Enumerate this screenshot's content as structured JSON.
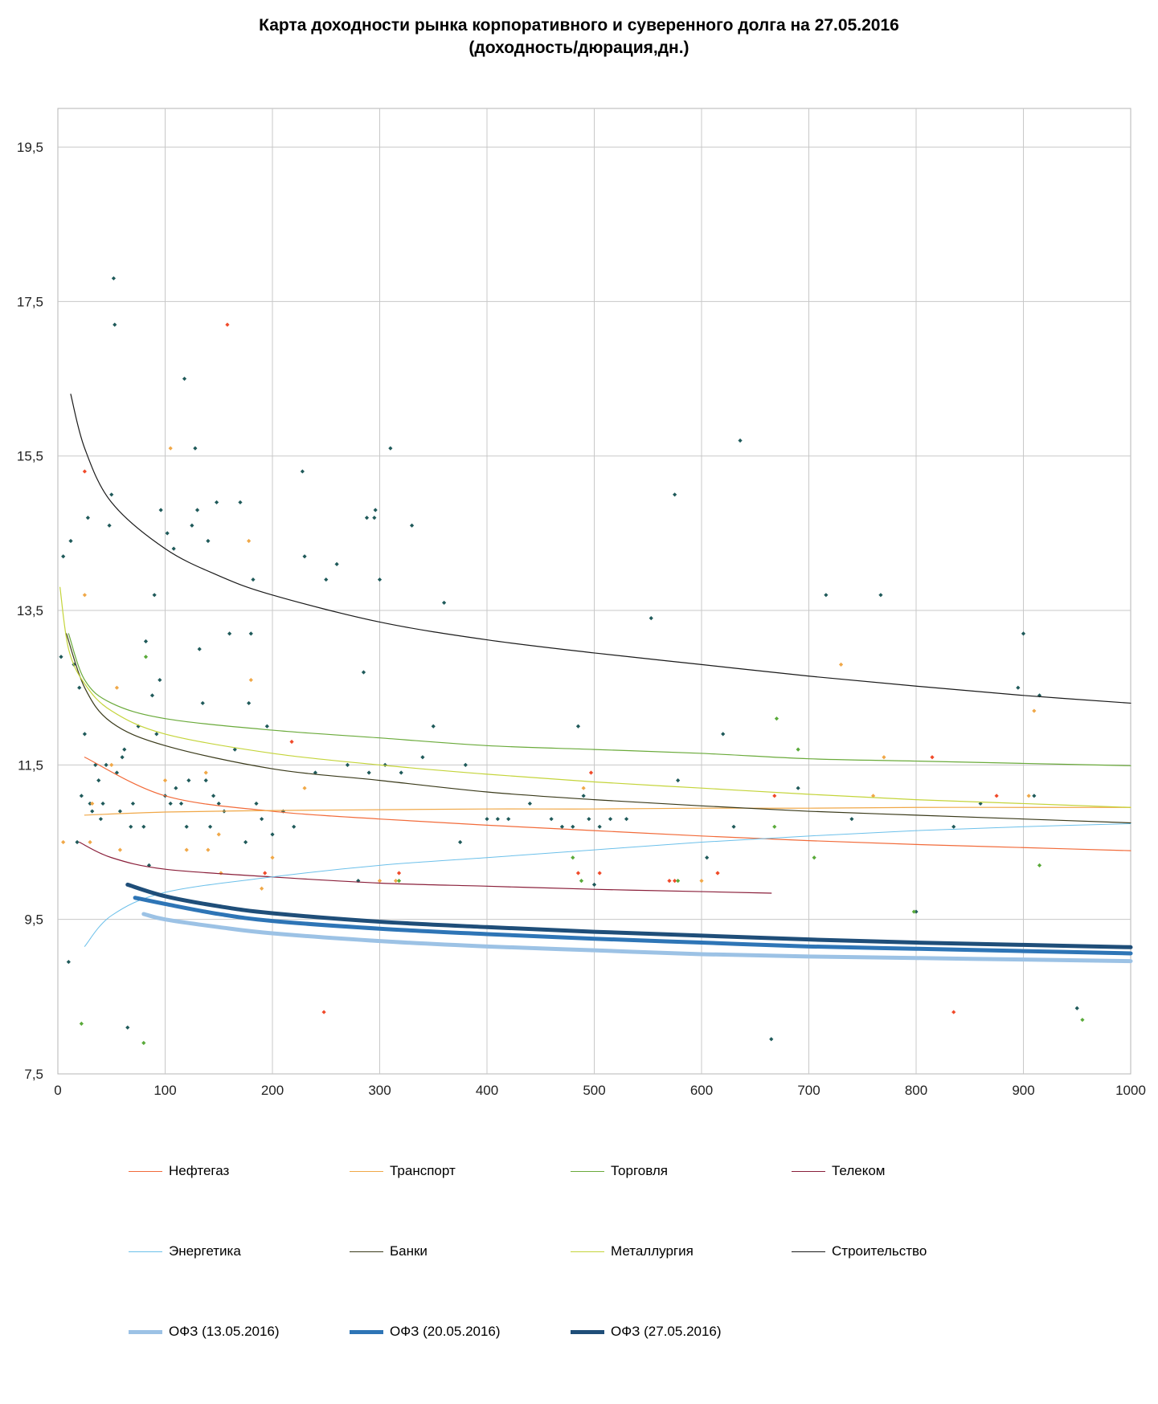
{
  "title": {
    "line1": "Карта доходности рынка корпоративного и суверенного долга на 27.05.2016",
    "line2": "(доходность/дюрация,дн.)"
  },
  "chart_data": {
    "type": "scatter",
    "title": "Карта доходности рынка корпоративного и суверенного долга на 27.05.2016 (доходность/дюрация,дн.)",
    "xlabel": "",
    "ylabel": "",
    "xlim": [
      0,
      1000
    ],
    "ylim": [
      7.5,
      20.0
    ],
    "x_ticks": [
      "0",
      "100",
      "200",
      "300",
      "400",
      "500",
      "600",
      "700",
      "800",
      "900",
      "1000"
    ],
    "y_ticks": [
      "7,5",
      "9,5",
      "11,5",
      "13,5",
      "15,5",
      "17,5",
      "19,5"
    ],
    "grid": true,
    "legend_position": "bottom",
    "series": [
      {
        "name": "Нефтегаз",
        "color": "#f26b3a",
        "width": 1.2,
        "x": [
          25,
          100,
          200,
          300,
          400,
          500,
          600,
          700,
          800,
          900,
          1000
        ],
        "y": [
          11.6,
          11.1,
          10.9,
          10.8,
          10.72,
          10.65,
          10.58,
          10.52,
          10.47,
          10.43,
          10.39
        ]
      },
      {
        "name": "Транспорт",
        "color": "#f0a848",
        "width": 1.2,
        "x": [
          25,
          100,
          200,
          300,
          400,
          500,
          600,
          700,
          800,
          900,
          1000
        ],
        "y": [
          10.85,
          10.89,
          10.91,
          10.92,
          10.93,
          10.93,
          10.94,
          10.94,
          10.95,
          10.95,
          10.95
        ]
      },
      {
        "name": "Торговля",
        "color": "#6aaa3a",
        "width": 1.2,
        "x": [
          10,
          25,
          50,
          100,
          200,
          300,
          400,
          500,
          600,
          700,
          800,
          900,
          1000
        ],
        "y": [
          13.2,
          12.6,
          12.3,
          12.1,
          11.95,
          11.85,
          11.75,
          11.7,
          11.65,
          11.58,
          11.55,
          11.52,
          11.49
        ]
      },
      {
        "name": "Телеком",
        "color": "#8a1f3a",
        "width": 1.2,
        "x": [
          20,
          50,
          100,
          200,
          300,
          400,
          500,
          600,
          665
        ],
        "y": [
          10.5,
          10.3,
          10.15,
          10.05,
          9.97,
          9.93,
          9.89,
          9.86,
          9.84
        ]
      },
      {
        "name": "Энергетика",
        "color": "#6cc0ea",
        "width": 1.0,
        "x": [
          25,
          50,
          100,
          200,
          300,
          400,
          500,
          600,
          700,
          800,
          900,
          1000
        ],
        "y": [
          9.15,
          9.55,
          9.85,
          10.05,
          10.2,
          10.3,
          10.4,
          10.5,
          10.58,
          10.65,
          10.7,
          10.74
        ]
      },
      {
        "name": "Банки",
        "color": "#3a3a1a",
        "width": 1.2,
        "x": [
          8,
          25,
          50,
          100,
          200,
          300,
          400,
          500,
          600,
          700,
          800,
          900,
          1000
        ],
        "y": [
          13.2,
          12.5,
          12.05,
          11.75,
          11.45,
          11.3,
          11.15,
          11.05,
          10.97,
          10.9,
          10.85,
          10.8,
          10.75
        ]
      },
      {
        "name": "Металлургия",
        "color": "#c4d43a",
        "width": 1.2,
        "x": [
          2,
          10,
          25,
          50,
          100,
          200,
          300,
          400,
          500,
          600,
          700,
          800,
          900,
          1000
        ],
        "y": [
          13.8,
          13.0,
          12.55,
          12.2,
          11.9,
          11.65,
          11.5,
          11.38,
          11.28,
          11.2,
          11.12,
          11.05,
          11.0,
          10.95
        ]
      },
      {
        "name": "Строительство",
        "color": "#1a1a1a",
        "width": 1.2,
        "x": [
          12,
          25,
          50,
          100,
          150,
          200,
          300,
          400,
          500,
          600,
          700,
          800,
          900,
          1000
        ],
        "y": [
          16.3,
          15.6,
          14.9,
          14.3,
          13.95,
          13.7,
          13.35,
          13.12,
          12.95,
          12.8,
          12.65,
          12.52,
          12.4,
          12.3
        ]
      },
      {
        "name": "ОФЗ (13.05.2016)",
        "color": "#9cc2e5",
        "width": 5,
        "x": [
          80,
          100,
          150,
          200,
          300,
          400,
          500,
          600,
          700,
          800,
          900,
          1000
        ],
        "y": [
          9.57,
          9.5,
          9.4,
          9.32,
          9.22,
          9.15,
          9.1,
          9.05,
          9.02,
          9.0,
          8.98,
          8.96
        ]
      },
      {
        "name": "ОФЗ (20.05.2016)",
        "color": "#2e75b6",
        "width": 5,
        "x": [
          72,
          100,
          150,
          200,
          300,
          400,
          500,
          600,
          700,
          800,
          900,
          1000
        ],
        "y": [
          9.78,
          9.7,
          9.57,
          9.48,
          9.38,
          9.31,
          9.25,
          9.2,
          9.15,
          9.12,
          9.09,
          9.06
        ]
      },
      {
        "name": "ОФЗ (27.05.2016)",
        "color": "#1f4e79",
        "width": 5,
        "x": [
          65,
          100,
          150,
          200,
          300,
          400,
          500,
          600,
          700,
          800,
          900,
          1000
        ],
        "y": [
          9.95,
          9.8,
          9.67,
          9.58,
          9.47,
          9.4,
          9.34,
          9.29,
          9.24,
          9.2,
          9.17,
          9.14
        ]
      }
    ],
    "points": {
      "color": "#1f5a5a",
      "x": [
        3,
        5,
        10,
        12,
        15,
        18,
        20,
        22,
        25,
        28,
        30,
        32,
        35,
        38,
        40,
        42,
        45,
        48,
        50,
        52,
        53,
        55,
        58,
        60,
        62,
        65,
        68,
        70,
        75,
        80,
        82,
        85,
        88,
        90,
        92,
        95,
        96,
        100,
        102,
        105,
        108,
        110,
        115,
        118,
        120,
        122,
        125,
        128,
        130,
        132,
        135,
        138,
        140,
        142,
        145,
        148,
        150,
        155,
        160,
        165,
        170,
        175,
        178,
        180,
        182,
        185,
        190,
        195,
        200,
        210,
        220,
        228,
        230,
        240,
        250,
        260,
        270,
        280,
        285,
        288,
        290,
        295,
        296,
        300,
        305,
        310,
        320,
        330,
        340,
        350,
        360,
        375,
        380,
        400,
        410,
        420,
        440,
        460,
        470,
        480,
        485,
        490,
        495,
        500,
        505,
        515,
        530,
        553,
        575,
        578,
        605,
        620,
        630,
        636,
        665,
        690,
        716,
        740,
        767,
        800,
        835,
        860,
        895,
        900,
        910,
        915,
        950
      ],
      "y": [
        12.9,
        14.2,
        8.95,
        14.4,
        12.8,
        10.5,
        12.5,
        11.1,
        11.9,
        14.7,
        11.0,
        10.9,
        11.5,
        11.3,
        10.8,
        11.0,
        11.5,
        14.6,
        15.0,
        17.8,
        17.2,
        11.4,
        10.9,
        11.6,
        11.7,
        8.1,
        10.7,
        11.0,
        12.0,
        10.7,
        13.1,
        10.2,
        12.4,
        13.7,
        11.9,
        12.6,
        14.8,
        11.1,
        14.5,
        11.0,
        14.3,
        11.2,
        11.0,
        16.5,
        10.7,
        11.3,
        14.6,
        15.6,
        14.8,
        13.0,
        12.3,
        11.3,
        14.4,
        10.7,
        11.1,
        14.9,
        11.0,
        10.9,
        13.2,
        11.7,
        14.9,
        10.5,
        12.3,
        13.2,
        13.9,
        11.0,
        10.8,
        12.0,
        10.6,
        10.9,
        10.7,
        15.3,
        14.2,
        11.4,
        13.9,
        14.1,
        11.5,
        10.0,
        12.7,
        14.7,
        11.4,
        14.7,
        14.8,
        13.9,
        11.5,
        15.6,
        11.4,
        14.6,
        11.6,
        12.0,
        13.6,
        10.5,
        11.5,
        10.8,
        10.8,
        10.8,
        11.0,
        10.8,
        10.7,
        10.7,
        12.0,
        11.1,
        10.8,
        9.95,
        10.7,
        10.8,
        10.8,
        13.4,
        15.0,
        11.3,
        10.3,
        11.9,
        10.7,
        15.7,
        7.95,
        11.2,
        13.7,
        10.8,
        13.7,
        9.6,
        10.7,
        11.0,
        12.5,
        13.2,
        11.1,
        12.4,
        8.35
      ],
      "accents": {
        "orange": {
          "color": "#f0a848",
          "x": [
            5,
            25,
            30,
            32,
            50,
            55,
            58,
            100,
            105,
            120,
            138,
            140,
            150,
            152,
            178,
            180,
            190,
            200,
            230,
            300,
            315,
            490,
            600,
            615,
            730,
            760,
            770,
            905,
            910
          ],
          "y": [
            10.5,
            13.7,
            10.5,
            11.0,
            11.5,
            12.5,
            10.4,
            11.3,
            15.6,
            10.4,
            11.4,
            10.4,
            10.6,
            10.1,
            14.4,
            12.6,
            9.9,
            10.3,
            11.2,
            10.0,
            10.0,
            11.2,
            10.0,
            10.1,
            12.8,
            11.1,
            11.6,
            11.1,
            12.2
          ]
        },
        "red": {
          "color": "#f04a2a",
          "x": [
            25,
            158,
            193,
            218,
            248,
            318,
            485,
            497,
            498,
            505,
            570,
            575,
            615,
            668,
            815,
            835,
            875
          ],
          "y": [
            15.3,
            17.2,
            10.1,
            11.8,
            8.3,
            10.1,
            10.1,
            11.4,
            9.1,
            10.1,
            10.0,
            10.0,
            10.1,
            11.1,
            11.6,
            8.3,
            11.1
          ]
        },
        "green": {
          "color": "#5aaa3a",
          "x": [
            22,
            80,
            82,
            318,
            480,
            488,
            578,
            668,
            670,
            690,
            705,
            798,
            915,
            955
          ],
          "y": [
            8.15,
            7.9,
            12.9,
            10.0,
            10.3,
            10.0,
            10.0,
            10.7,
            12.1,
            11.7,
            10.3,
            9.6,
            10.2,
            8.2
          ]
        }
      }
    }
  },
  "legend_rows": [
    [
      {
        "label": "Нефтегаз",
        "color": "#f26b3a",
        "width": 1.5
      },
      {
        "label": "Транспорт",
        "color": "#f0a848",
        "width": 1.5
      },
      {
        "label": "Торговля",
        "color": "#6aaa3a",
        "width": 1.5
      },
      {
        "label": "Телеком",
        "color": "#8a1f3a",
        "width": 1.5
      }
    ],
    [
      {
        "label": "Энергетика",
        "color": "#6cc0ea",
        "width": 1.5
      },
      {
        "label": "Банки",
        "color": "#3a3a1a",
        "width": 1.5
      },
      {
        "label": "Металлургия",
        "color": "#c4d43a",
        "width": 1.5
      },
      {
        "label": "Строительство",
        "color": "#1a1a1a",
        "width": 1.5
      }
    ],
    [
      {
        "label": "ОФЗ (13.05.2016)",
        "color": "#9cc2e5",
        "width": 5
      },
      {
        "label": "ОФЗ (20.05.2016)",
        "color": "#2e75b6",
        "width": 5
      },
      {
        "label": "ОФЗ (27.05.2016)",
        "color": "#1f4e79",
        "width": 5
      }
    ]
  ]
}
